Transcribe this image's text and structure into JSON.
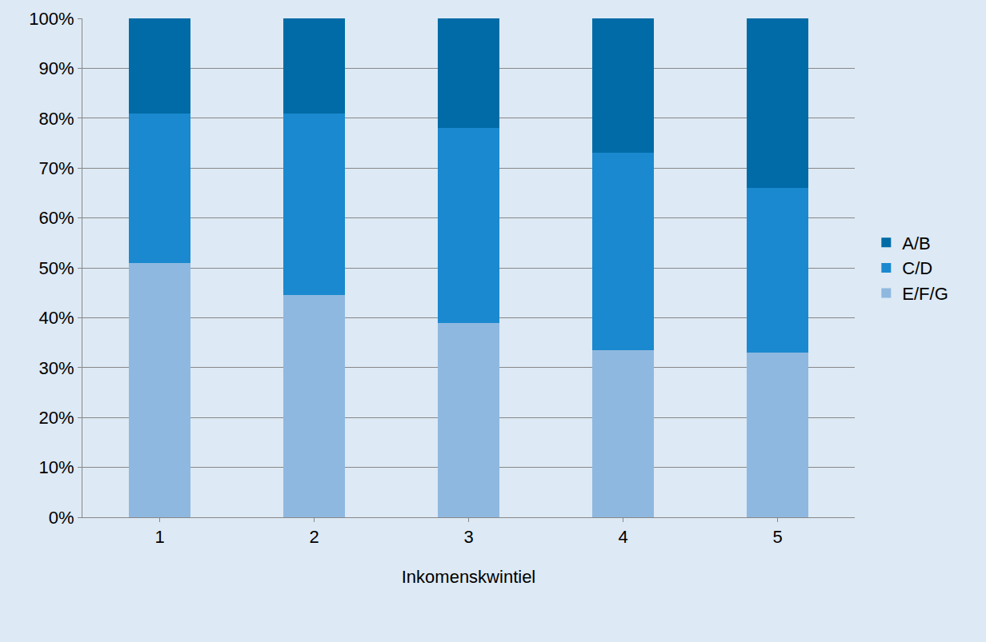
{
  "chart_data": {
    "type": "bar",
    "stacked": true,
    "x_label": "Inkomenskwintiel",
    "categories": [
      "1",
      "2",
      "3",
      "4",
      "5"
    ],
    "series": [
      {
        "name": "E/F/G",
        "color": "#8fb8e0",
        "values": [
          51,
          44.5,
          39,
          33.5,
          33
        ]
      },
      {
        "name": "C/D",
        "color": "#1a89cf",
        "values": [
          30,
          36.5,
          39,
          39.5,
          33
        ]
      },
      {
        "name": "A/B",
        "color": "#006ba6",
        "values": [
          19,
          19,
          22,
          27,
          34
        ]
      }
    ],
    "ylim": [
      0,
      100
    ],
    "yticks": [
      {
        "value": 0,
        "label": "0%"
      },
      {
        "value": 10,
        "label": "10%"
      },
      {
        "value": 20,
        "label": "20%"
      },
      {
        "value": 30,
        "label": "30%"
      },
      {
        "value": 40,
        "label": "40%"
      },
      {
        "value": 50,
        "label": "50%"
      },
      {
        "value": 60,
        "label": "60%"
      },
      {
        "value": 70,
        "label": "70%"
      },
      {
        "value": 80,
        "label": "80%"
      },
      {
        "value": 90,
        "label": "90%"
      },
      {
        "value": 100,
        "label": "100%"
      }
    ],
    "grid": true,
    "legend": "right"
  }
}
